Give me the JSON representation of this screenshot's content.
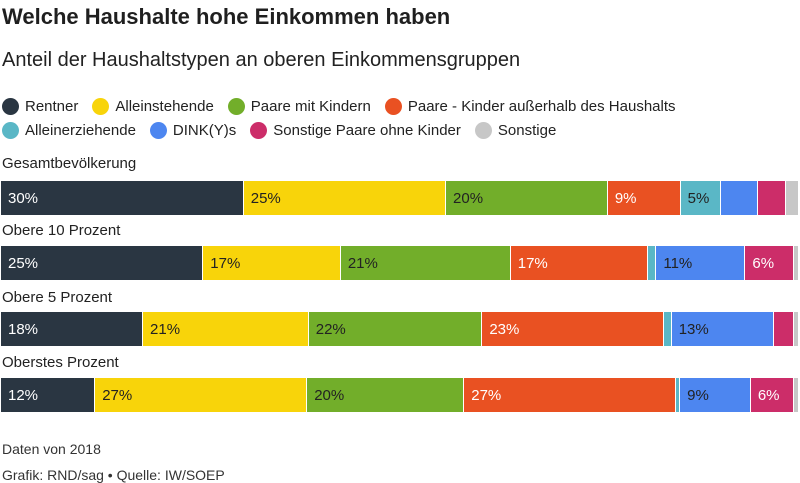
{
  "chart_data": {
    "type": "bar",
    "stacked": true,
    "orientation": "horizontal",
    "title": "Welche Haushalte hohe Einkommen haben",
    "subtitle": "Anteil der Haushaltstypen an oberen Einkommensgruppen",
    "categories": [
      "Gesamtbevölkerung",
      "Obere 10 Prozent",
      "Obere 5 Prozent",
      "Oberstes Prozent"
    ],
    "series": [
      {
        "name": "Rentner",
        "color": "#2a3642",
        "values": [
          30,
          25,
          18,
          12
        ],
        "labels": [
          "30%",
          "25%",
          "18%",
          "12%"
        ]
      },
      {
        "name": "Alleinstehende",
        "color": "#f8d40a",
        "values": [
          25,
          17,
          21,
          27
        ],
        "labels": [
          "25%",
          "17%",
          "21%",
          "27%"
        ]
      },
      {
        "name": "Paare mit Kindern",
        "color": "#72ae2a",
        "values": [
          20,
          21,
          22,
          20
        ],
        "labels": [
          "20%",
          "21%",
          "22%",
          "20%"
        ]
      },
      {
        "name": "Paare - Kinder außerhalb des Haushalts",
        "color": "#e95122",
        "values": [
          9,
          17,
          23,
          27
        ],
        "labels": [
          "9%",
          "17%",
          "23%",
          "27%"
        ]
      },
      {
        "name": "Alleinerziehende",
        "color": "#5ab7c6",
        "values": [
          5,
          1,
          1,
          0.5
        ],
        "labels": [
          "5%",
          "",
          "",
          ""
        ]
      },
      {
        "name": "DINK(Y)s",
        "color": "#4d86f0",
        "values": [
          4.5,
          11,
          13,
          9
        ],
        "labels": [
          "",
          "11%",
          "13%",
          "9%"
        ]
      },
      {
        "name": "Sonstige Paare ohne Kinder",
        "color": "#cc2d69",
        "values": [
          3.5,
          6,
          2.5,
          5.5
        ],
        "labels": [
          "",
          "6%",
          "",
          "6%"
        ]
      },
      {
        "name": "Sonstige",
        "color": "#c7c7c7",
        "values": [
          1.5,
          0.5,
          0.5,
          0.5
        ],
        "labels": [
          "",
          "",
          "",
          ""
        ]
      }
    ],
    "xlim": [
      0,
      100
    ],
    "grid": false,
    "legend_position": "top"
  },
  "footer": {
    "note": "Daten von 2018",
    "credit": "Grafik: RND/sag • Quelle: IW/SOEP"
  }
}
